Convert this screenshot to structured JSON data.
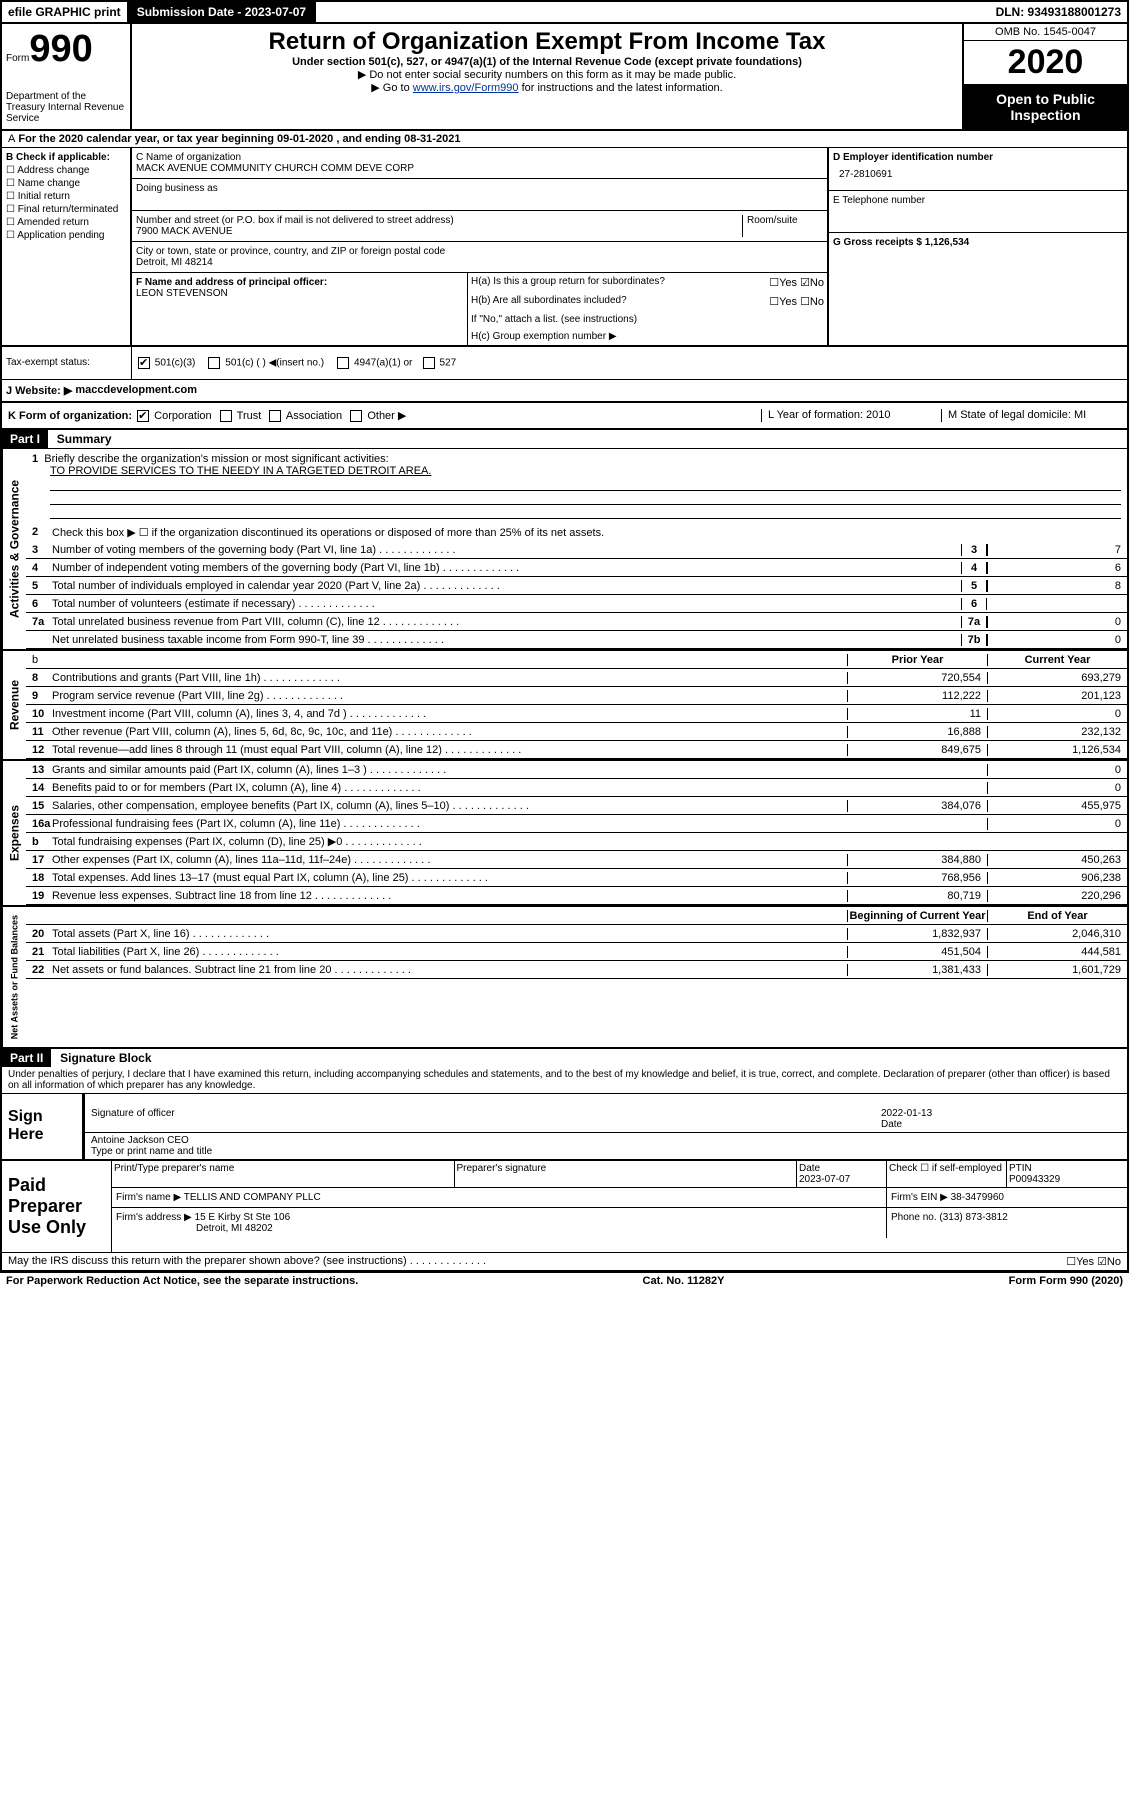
{
  "topbar": {
    "efile": "efile GRAPHIC print",
    "subdate_label": "Submission Date - 2023-07-07",
    "dln": "DLN: 93493188001273"
  },
  "header": {
    "form_label": "Form",
    "form_num": "990",
    "dept": "Department of the Treasury Internal Revenue Service",
    "title": "Return of Organization Exempt From Income Tax",
    "sub1": "Under section 501(c), 527, or 4947(a)(1) of the Internal Revenue Code (except private foundations)",
    "sub2": "▶ Do not enter social security numbers on this form as it may be made public.",
    "sub3_pre": "▶ Go to ",
    "sub3_link": "www.irs.gov/Form990",
    "sub3_post": " for instructions and the latest information.",
    "omb": "OMB No. 1545-0047",
    "year": "2020",
    "open": "Open to Public Inspection"
  },
  "rowA": "For the 2020 calendar year, or tax year beginning 09-01-2020   , and ending 08-31-2021",
  "checkB": {
    "label": "B Check if applicable:",
    "items": [
      "Address change",
      "Name change",
      "Initial return",
      "Final return/terminated",
      "Amended return",
      "Application pending"
    ]
  },
  "org": {
    "name_label": "C Name of organization",
    "name": "MACK AVENUE COMMUNITY CHURCH COMM DEVE CORP",
    "dba_label": "Doing business as",
    "addr_label": "Number and street (or P.O. box if mail is not delivered to street address)",
    "room_label": "Room/suite",
    "addr": "7900 MACK AVENUE",
    "city_label": "City or town, state or province, country, and ZIP or foreign postal code",
    "city": "Detroit, MI  48214",
    "officer_label": "F  Name and address of principal officer:",
    "officer": "LEON STEVENSON"
  },
  "idcol": {
    "ein_label": "D Employer identification number",
    "ein": "27-2810691",
    "tel_label": "E Telephone number",
    "gross_label": "G Gross receipts $ 1,126,534",
    "ha": "H(a)  Is this a group return for subordinates?",
    "hb": "H(b)  Are all subordinates included?",
    "hb_note": "If \"No,\" attach a list. (see instructions)",
    "hc": "H(c)  Group exemption number ▶"
  },
  "tax": {
    "label": "Tax-exempt status:",
    "opts": [
      "501(c)(3)",
      "501(c) (  ) ◀(insert no.)",
      "4947(a)(1) or",
      "527"
    ]
  },
  "website_label": "J  Website: ▶",
  "website": "maccdevelopment.com",
  "k": {
    "label": "K Form of organization:",
    "opts": [
      "Corporation",
      "Trust",
      "Association",
      "Other ▶"
    ],
    "year_label": "L Year of formation: 2010",
    "state_label": "M State of legal domicile: MI"
  },
  "part1": {
    "label": "Part I",
    "title": "Summary",
    "q1": "Briefly describe the organization's mission or most significant activities:",
    "q1v": "TO PROVIDE SERVICES TO THE NEEDY IN A TARGETED DETROIT AREA.",
    "q2": "Check this box ▶ ☐  if the organization discontinued its operations or disposed of more than 25% of its net assets.",
    "lines_ag": [
      {
        "n": "3",
        "t": "Number of voting members of the governing body (Part VI, line 1a)",
        "box": "3",
        "v": "7"
      },
      {
        "n": "4",
        "t": "Number of independent voting members of the governing body (Part VI, line 1b)",
        "box": "4",
        "v": "6"
      },
      {
        "n": "5",
        "t": "Total number of individuals employed in calendar year 2020 (Part V, line 2a)",
        "box": "5",
        "v": "8"
      },
      {
        "n": "6",
        "t": "Total number of volunteers (estimate if necessary)",
        "box": "6",
        "v": ""
      },
      {
        "n": "7a",
        "t": "Total unrelated business revenue from Part VIII, column (C), line 12",
        "box": "7a",
        "v": "0"
      },
      {
        "n": "",
        "t": "Net unrelated business taxable income from Form 990-T, line 39",
        "box": "7b",
        "v": "0"
      }
    ],
    "rev_header": {
      "prior": "Prior Year",
      "current": "Current Year"
    },
    "rev": [
      {
        "n": "8",
        "t": "Contributions and grants (Part VIII, line 1h)",
        "p": "720,554",
        "c": "693,279"
      },
      {
        "n": "9",
        "t": "Program service revenue (Part VIII, line 2g)",
        "p": "112,222",
        "c": "201,123"
      },
      {
        "n": "10",
        "t": "Investment income (Part VIII, column (A), lines 3, 4, and 7d )",
        "p": "11",
        "c": "0"
      },
      {
        "n": "11",
        "t": "Other revenue (Part VIII, column (A), lines 5, 6d, 8c, 9c, 10c, and 11e)",
        "p": "16,888",
        "c": "232,132"
      },
      {
        "n": "12",
        "t": "Total revenue—add lines 8 through 11 (must equal Part VIII, column (A), line 12)",
        "p": "849,675",
        "c": "1,126,534"
      }
    ],
    "exp": [
      {
        "n": "13",
        "t": "Grants and similar amounts paid (Part IX, column (A), lines 1–3 )",
        "p": "",
        "c": "0"
      },
      {
        "n": "14",
        "t": "Benefits paid to or for members (Part IX, column (A), line 4)",
        "p": "",
        "c": "0"
      },
      {
        "n": "15",
        "t": "Salaries, other compensation, employee benefits (Part IX, column (A), lines 5–10)",
        "p": "384,076",
        "c": "455,975"
      },
      {
        "n": "16a",
        "t": "Professional fundraising fees (Part IX, column (A), line 11e)",
        "p": "",
        "c": "0"
      },
      {
        "n": "b",
        "t": "Total fundraising expenses (Part IX, column (D), line 25) ▶0",
        "p": "SHADE",
        "c": "SHADE"
      },
      {
        "n": "17",
        "t": "Other expenses (Part IX, column (A), lines 11a–11d, 11f–24e)",
        "p": "384,880",
        "c": "450,263"
      },
      {
        "n": "18",
        "t": "Total expenses. Add lines 13–17 (must equal Part IX, column (A), line 25)",
        "p": "768,956",
        "c": "906,238"
      },
      {
        "n": "19",
        "t": "Revenue less expenses. Subtract line 18 from line 12",
        "p": "80,719",
        "c": "220,296"
      }
    ],
    "na_header": {
      "prior": "Beginning of Current Year",
      "current": "End of Year"
    },
    "na": [
      {
        "n": "20",
        "t": "Total assets (Part X, line 16)",
        "p": "1,832,937",
        "c": "2,046,310"
      },
      {
        "n": "21",
        "t": "Total liabilities (Part X, line 26)",
        "p": "451,504",
        "c": "444,581"
      },
      {
        "n": "22",
        "t": "Net assets or fund balances. Subtract line 21 from line 20",
        "p": "1,381,433",
        "c": "1,601,729"
      }
    ]
  },
  "part2": {
    "label": "Part II",
    "title": "Signature Block",
    "perjury": "Under penalties of perjury, I declare that I have examined this return, including accompanying schedules and statements, and to the best of my knowledge and belief, it is true, correct, and complete. Declaration of preparer (other than officer) is based on all information of which preparer has any knowledge.",
    "sign_here": "Sign Here",
    "sig_officer": "Signature of officer",
    "sig_date": "2022-01-13",
    "date_lbl": "Date",
    "officer_name": "Antoine Jackson CEO",
    "type_name": "Type or print name and title"
  },
  "preparer": {
    "label": "Paid Preparer Use Only",
    "print_name_lbl": "Print/Type preparer's name",
    "prep_sig_lbl": "Preparer's signature",
    "date_lbl": "Date",
    "date": "2023-07-07",
    "check_lbl": "Check ☐ if self-employed",
    "ptin_lbl": "PTIN",
    "ptin": "P00943329",
    "firm_lbl": "Firm's name   ▶",
    "firm": "TELLIS AND COMPANY PLLC",
    "ein_lbl": "Firm's EIN ▶",
    "ein": "38-3479960",
    "addr_lbl": "Firm's address ▶",
    "addr1": "15 E Kirby St Ste 106",
    "addr2": "Detroit, MI  48202",
    "phone_lbl": "Phone no.",
    "phone": "(313) 873-3812",
    "discuss": "May the IRS discuss this return with the preparer shown above? (see instructions)"
  },
  "footer": {
    "paperwork": "For Paperwork Reduction Act Notice, see the separate instructions.",
    "cat": "Cat. No. 11282Y",
    "form": "Form 990 (2020)"
  }
}
